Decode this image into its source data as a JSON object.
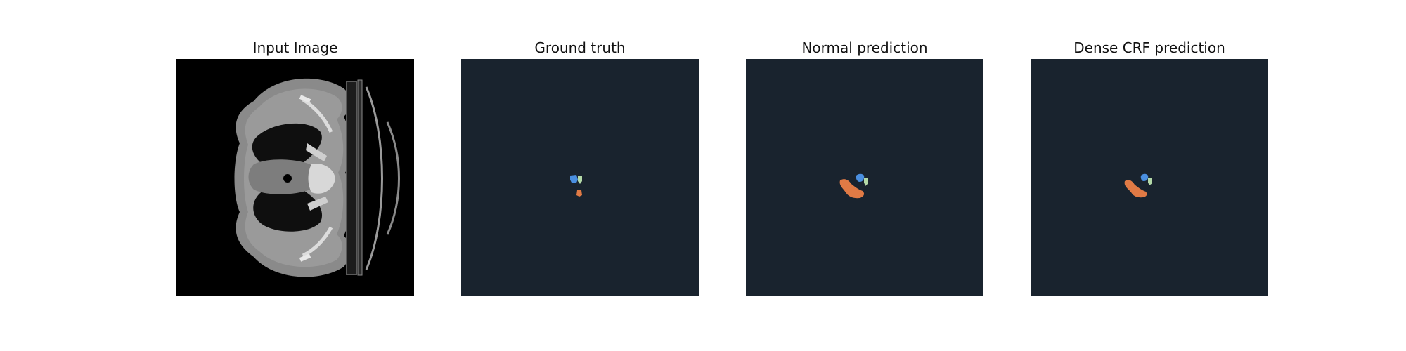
{
  "panels": [
    {
      "title": "Input Image"
    },
    {
      "title": "Ground truth"
    },
    {
      "title": "Normal prediction"
    },
    {
      "title": "Dense CRF prediction"
    }
  ],
  "colors": {
    "mask_background": "#19232e",
    "label_orange": "#e07a45",
    "label_blue": "#4a8fe0",
    "label_green": "#b4d9a8"
  }
}
